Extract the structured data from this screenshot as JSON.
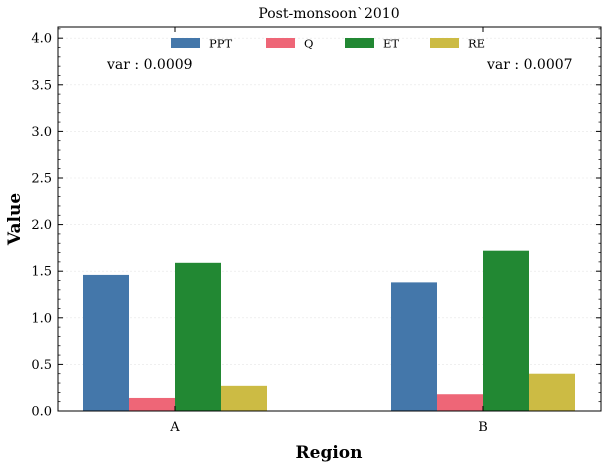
{
  "chart_data": {
    "type": "bar",
    "title": "Post-monsoon`2010",
    "xlabel": "Region",
    "ylabel": "Value",
    "categories": [
      "A",
      "B"
    ],
    "ylim": [
      0,
      4.12
    ],
    "yticks": [
      "0.0",
      "0.5",
      "1.0",
      "1.5",
      "2.0",
      "2.5",
      "3.0",
      "3.5",
      "4.0"
    ],
    "grid": true,
    "legend_position": "top-center",
    "series": [
      {
        "name": "PPT",
        "color": "#4477aa",
        "values": [
          1.46,
          1.38
        ]
      },
      {
        "name": "Q",
        "color": "#ee6677",
        "values": [
          0.14,
          0.18
        ]
      },
      {
        "name": "ET",
        "color": "#228833",
        "values": [
          1.59,
          1.72
        ]
      },
      {
        "name": "RE",
        "color": "#ccbb44",
        "values": [
          0.27,
          0.4
        ]
      }
    ],
    "annotations": [
      "var : 0.0009",
      "var : 0.0007"
    ]
  }
}
